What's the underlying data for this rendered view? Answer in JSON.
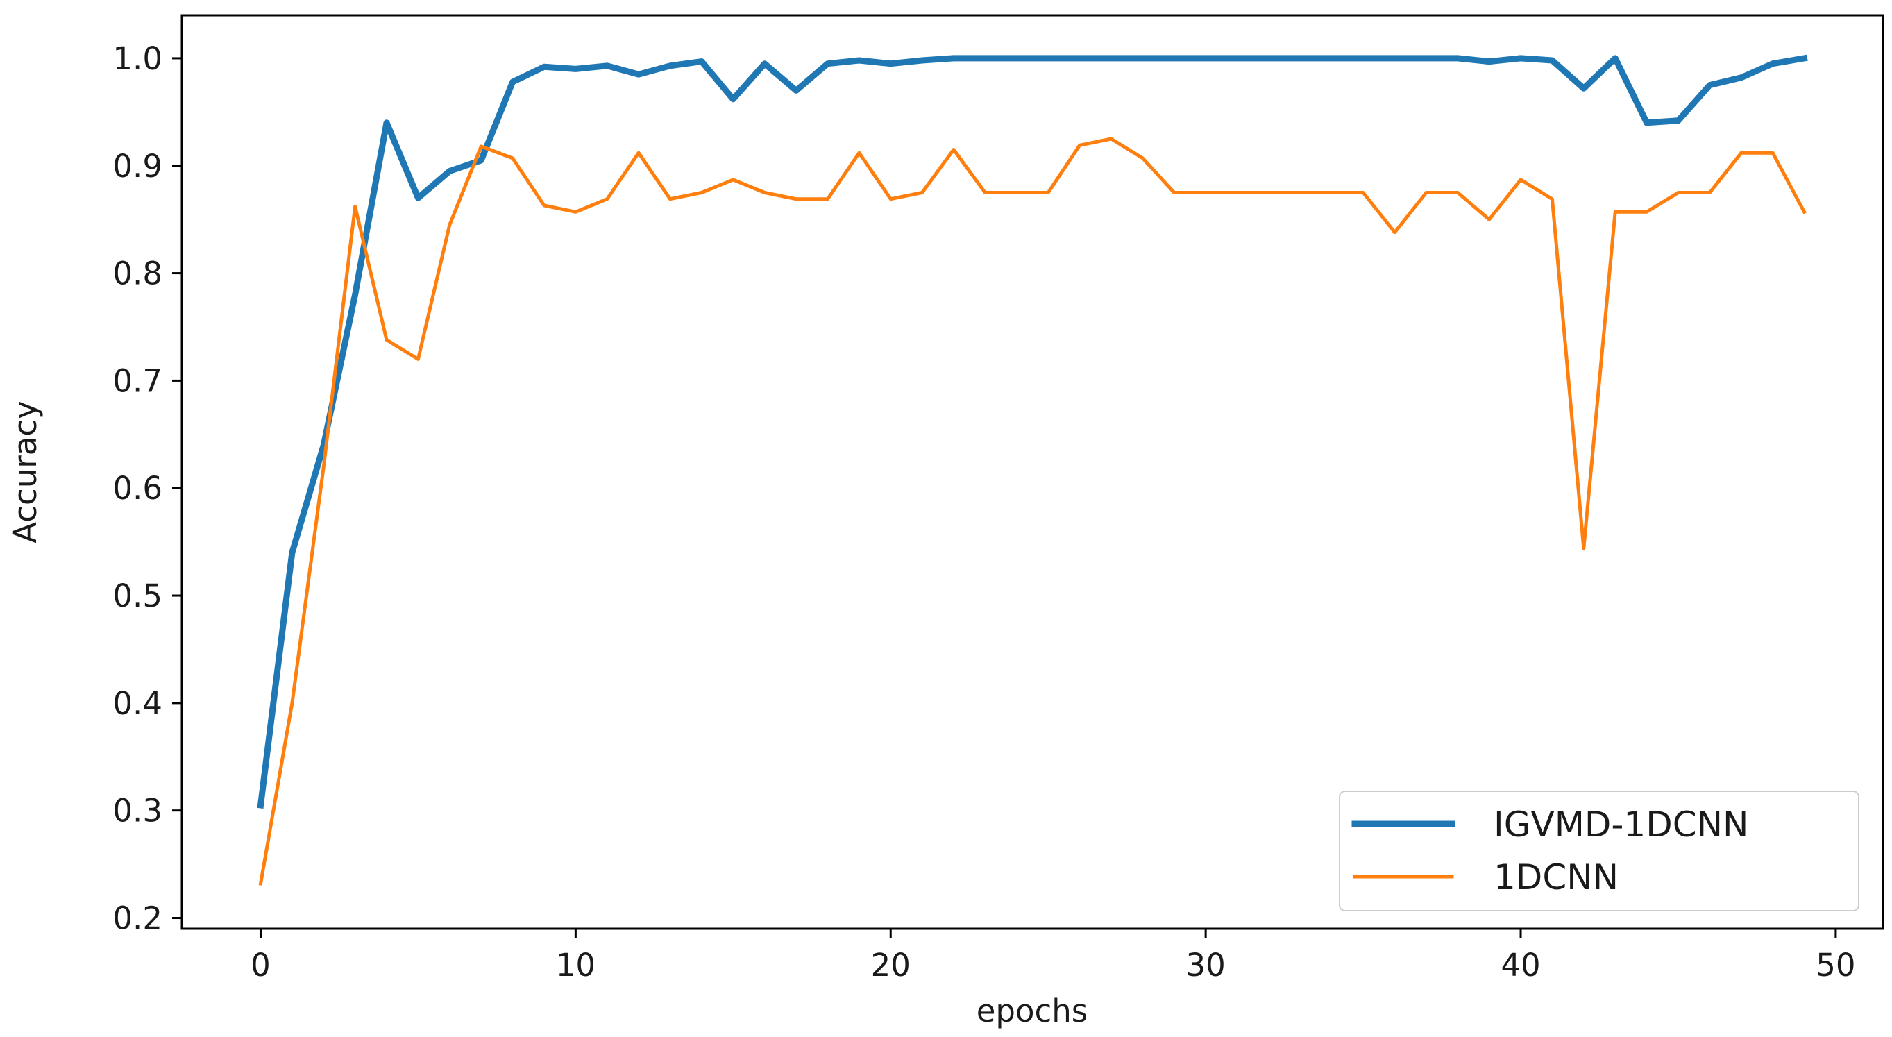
{
  "chart_data": {
    "type": "line",
    "title": "",
    "xlabel": "epochs",
    "ylabel": "Accuracy",
    "xlim": [
      -2.5,
      51.5
    ],
    "ylim": [
      0.19,
      1.04
    ],
    "xticks": [
      0,
      10,
      20,
      30,
      40,
      50
    ],
    "xtick_labels": [
      "0",
      "10",
      "20",
      "30",
      "40",
      "50"
    ],
    "yticks": [
      0.2,
      0.3,
      0.4,
      0.5,
      0.6,
      0.7,
      0.8,
      0.9,
      1.0
    ],
    "ytick_labels": [
      "0.2",
      "0.3",
      "0.4",
      "0.5",
      "0.6",
      "0.7",
      "0.8",
      "0.9",
      "1.0"
    ],
    "grid": false,
    "legend": "lower-right",
    "x": [
      0,
      1,
      2,
      3,
      4,
      5,
      6,
      7,
      8,
      9,
      10,
      11,
      12,
      13,
      14,
      15,
      16,
      17,
      18,
      19,
      20,
      21,
      22,
      23,
      24,
      25,
      26,
      27,
      28,
      29,
      30,
      31,
      32,
      33,
      34,
      35,
      36,
      37,
      38,
      39,
      40,
      41,
      42,
      43,
      44,
      45,
      46,
      47,
      48,
      49
    ],
    "series": [
      {
        "name": "IGVMD-1DCNN",
        "color": "#1f77b4",
        "values": [
          0.305,
          0.54,
          0.64,
          0.78,
          0.94,
          0.87,
          0.895,
          0.905,
          0.978,
          0.992,
          0.99,
          0.993,
          0.985,
          0.993,
          0.997,
          0.962,
          0.995,
          0.97,
          0.995,
          0.998,
          0.995,
          0.998,
          1.0,
          1.0,
          1.0,
          1.0,
          1.0,
          1.0,
          1.0,
          1.0,
          1.0,
          1.0,
          1.0,
          1.0,
          1.0,
          1.0,
          1.0,
          1.0,
          1.0,
          0.997,
          1.0,
          0.998,
          0.972,
          1.0,
          0.94,
          0.942,
          0.975,
          0.982,
          0.995,
          1.0
        ]
      },
      {
        "name": "1DCNN",
        "color": "#ff7f0e",
        "values": [
          0.232,
          0.4,
          0.62,
          0.862,
          0.738,
          0.72,
          0.845,
          0.918,
          0.907,
          0.863,
          0.857,
          0.869,
          0.912,
          0.869,
          0.875,
          0.887,
          0.875,
          0.869,
          0.869,
          0.912,
          0.869,
          0.875,
          0.915,
          0.875,
          0.875,
          0.875,
          0.919,
          0.925,
          0.907,
          0.875,
          0.875,
          0.875,
          0.875,
          0.875,
          0.875,
          0.875,
          0.838,
          0.875,
          0.875,
          0.85,
          0.887,
          0.869,
          0.544,
          0.857,
          0.857,
          0.875,
          0.875,
          0.912,
          0.912,
          0.857
        ]
      }
    ]
  }
}
